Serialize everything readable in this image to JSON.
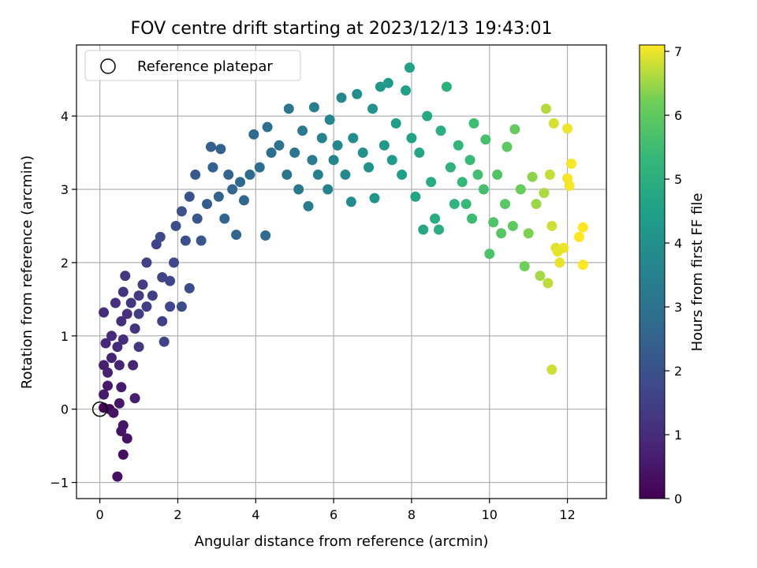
{
  "chart_data": {
    "type": "scatter",
    "title": "FOV centre drift starting at 2023/12/13 19:43:01",
    "xlabel": "Angular distance from reference (arcmin)",
    "ylabel": "Rotation from reference (arcmin)",
    "xlim": [
      -0.6,
      13.0
    ],
    "ylim": [
      -1.22,
      4.97
    ],
    "xticks": [
      0,
      2,
      4,
      6,
      8,
      10,
      12
    ],
    "yticks": [
      -1,
      0,
      1,
      2,
      3,
      4
    ],
    "grid": true,
    "legend": {
      "label": "Reference platepar",
      "position": "top-left"
    },
    "reference_point": {
      "x": 0,
      "y": 0
    },
    "colorbar": {
      "label": "Hours from first FF file",
      "range": [
        0,
        7.1
      ],
      "ticks": [
        0,
        1,
        2,
        3,
        4,
        5,
        6,
        7
      ],
      "colormap": "viridis"
    },
    "points": [
      {
        "x": 0.1,
        "y": 0.02,
        "h": 0.05
      },
      {
        "x": 0.25,
        "y": 0.0,
        "h": 0.1
      },
      {
        "x": 0.45,
        "y": -0.92,
        "h": 0.3
      },
      {
        "x": 0.6,
        "y": -0.62,
        "h": 0.35
      },
      {
        "x": 0.7,
        "y": -0.4,
        "h": 0.4
      },
      {
        "x": 0.55,
        "y": -0.3,
        "h": 0.45
      },
      {
        "x": 0.6,
        "y": -0.22,
        "h": 0.5
      },
      {
        "x": 0.5,
        "y": 0.08,
        "h": 0.5
      },
      {
        "x": 0.35,
        "y": -0.05,
        "h": 0.4
      },
      {
        "x": 0.55,
        "y": 0.3,
        "h": 0.6
      },
      {
        "x": 0.9,
        "y": 0.15,
        "h": 0.7
      },
      {
        "x": 0.2,
        "y": 0.32,
        "h": 0.55
      },
      {
        "x": 0.1,
        "y": 0.2,
        "h": 0.6
      },
      {
        "x": 0.1,
        "y": 0.6,
        "h": 0.7
      },
      {
        "x": 0.2,
        "y": 0.5,
        "h": 0.75
      },
      {
        "x": 0.3,
        "y": 0.7,
        "h": 0.8
      },
      {
        "x": 0.5,
        "y": 0.6,
        "h": 0.8
      },
      {
        "x": 0.85,
        "y": 0.6,
        "h": 0.85
      },
      {
        "x": 0.15,
        "y": 0.9,
        "h": 0.9
      },
      {
        "x": 0.3,
        "y": 1.0,
        "h": 0.9
      },
      {
        "x": 0.45,
        "y": 0.85,
        "h": 0.95
      },
      {
        "x": 0.6,
        "y": 0.95,
        "h": 1.0
      },
      {
        "x": 0.1,
        "y": 1.32,
        "h": 1.0
      },
      {
        "x": 0.4,
        "y": 1.45,
        "h": 1.05
      },
      {
        "x": 0.55,
        "y": 1.2,
        "h": 1.1
      },
      {
        "x": 0.7,
        "y": 1.3,
        "h": 1.15
      },
      {
        "x": 0.9,
        "y": 1.1,
        "h": 1.2
      },
      {
        "x": 0.6,
        "y": 1.6,
        "h": 1.2
      },
      {
        "x": 0.65,
        "y": 1.82,
        "h": 1.25
      },
      {
        "x": 1.0,
        "y": 0.85,
        "h": 1.3
      },
      {
        "x": 0.8,
        "y": 1.45,
        "h": 1.3
      },
      {
        "x": 1.0,
        "y": 1.55,
        "h": 1.35
      },
      {
        "x": 1.1,
        "y": 1.7,
        "h": 1.4
      },
      {
        "x": 1.2,
        "y": 1.4,
        "h": 1.45
      },
      {
        "x": 1.35,
        "y": 1.55,
        "h": 1.5
      },
      {
        "x": 1.2,
        "y": 2.0,
        "h": 1.55
      },
      {
        "x": 1.0,
        "y": 1.3,
        "h": 1.5
      },
      {
        "x": 1.6,
        "y": 1.2,
        "h": 1.55
      },
      {
        "x": 1.65,
        "y": 0.92,
        "h": 1.6
      },
      {
        "x": 1.45,
        "y": 2.25,
        "h": 1.6
      },
      {
        "x": 1.6,
        "y": 1.8,
        "h": 1.65
      },
      {
        "x": 1.8,
        "y": 1.75,
        "h": 1.7
      },
      {
        "x": 1.9,
        "y": 2.0,
        "h": 1.75
      },
      {
        "x": 1.55,
        "y": 2.35,
        "h": 1.75
      },
      {
        "x": 1.8,
        "y": 1.4,
        "h": 1.7
      },
      {
        "x": 2.1,
        "y": 1.4,
        "h": 1.8
      },
      {
        "x": 2.3,
        "y": 1.65,
        "h": 1.85
      },
      {
        "x": 1.95,
        "y": 2.5,
        "h": 1.9
      },
      {
        "x": 2.2,
        "y": 2.3,
        "h": 1.95
      },
      {
        "x": 2.3,
        "y": 2.9,
        "h": 2.0
      },
      {
        "x": 2.1,
        "y": 2.7,
        "h": 2.0
      },
      {
        "x": 2.5,
        "y": 2.6,
        "h": 2.1
      },
      {
        "x": 2.45,
        "y": 3.2,
        "h": 2.2
      },
      {
        "x": 2.6,
        "y": 2.3,
        "h": 2.2
      },
      {
        "x": 2.75,
        "y": 2.8,
        "h": 2.3
      },
      {
        "x": 2.85,
        "y": 3.58,
        "h": 2.4
      },
      {
        "x": 2.9,
        "y": 3.3,
        "h": 2.45
      },
      {
        "x": 3.05,
        "y": 2.9,
        "h": 2.5
      },
      {
        "x": 3.1,
        "y": 3.55,
        "h": 2.5
      },
      {
        "x": 3.3,
        "y": 3.2,
        "h": 2.55
      },
      {
        "x": 3.2,
        "y": 2.6,
        "h": 2.55
      },
      {
        "x": 3.4,
        "y": 3.0,
        "h": 2.6
      },
      {
        "x": 3.5,
        "y": 2.38,
        "h": 2.6
      },
      {
        "x": 3.6,
        "y": 3.1,
        "h": 2.65
      },
      {
        "x": 3.7,
        "y": 2.85,
        "h": 2.7
      },
      {
        "x": 3.85,
        "y": 3.2,
        "h": 2.75
      },
      {
        "x": 3.95,
        "y": 3.75,
        "h": 2.8
      },
      {
        "x": 4.1,
        "y": 3.3,
        "h": 2.85
      },
      {
        "x": 4.25,
        "y": 2.37,
        "h": 2.85
      },
      {
        "x": 4.3,
        "y": 3.85,
        "h": 2.9
      },
      {
        "x": 4.4,
        "y": 3.5,
        "h": 2.95
      },
      {
        "x": 4.6,
        "y": 3.6,
        "h": 3.0
      },
      {
        "x": 4.8,
        "y": 3.2,
        "h": 3.05
      },
      {
        "x": 4.85,
        "y": 4.1,
        "h": 3.1
      },
      {
        "x": 5.0,
        "y": 3.5,
        "h": 3.15
      },
      {
        "x": 5.1,
        "y": 3.0,
        "h": 3.2
      },
      {
        "x": 5.2,
        "y": 3.8,
        "h": 3.25
      },
      {
        "x": 5.35,
        "y": 2.77,
        "h": 3.3
      },
      {
        "x": 5.45,
        "y": 3.4,
        "h": 3.35
      },
      {
        "x": 5.5,
        "y": 4.12,
        "h": 3.4
      },
      {
        "x": 5.6,
        "y": 3.2,
        "h": 3.45
      },
      {
        "x": 5.7,
        "y": 3.7,
        "h": 3.5
      },
      {
        "x": 5.85,
        "y": 3.0,
        "h": 3.55
      },
      {
        "x": 5.9,
        "y": 3.95,
        "h": 3.6
      },
      {
        "x": 6.0,
        "y": 3.4,
        "h": 3.65
      },
      {
        "x": 6.1,
        "y": 3.6,
        "h": 3.7
      },
      {
        "x": 6.2,
        "y": 4.25,
        "h": 3.75
      },
      {
        "x": 6.3,
        "y": 3.2,
        "h": 3.8
      },
      {
        "x": 6.45,
        "y": 2.83,
        "h": 3.85
      },
      {
        "x": 6.5,
        "y": 3.7,
        "h": 3.9
      },
      {
        "x": 6.6,
        "y": 4.3,
        "h": 3.95
      },
      {
        "x": 6.75,
        "y": 3.5,
        "h": 4.0
      },
      {
        "x": 6.9,
        "y": 3.3,
        "h": 4.05
      },
      {
        "x": 7.0,
        "y": 4.1,
        "h": 4.1
      },
      {
        "x": 7.05,
        "y": 2.88,
        "h": 4.15
      },
      {
        "x": 7.2,
        "y": 4.4,
        "h": 4.2
      },
      {
        "x": 7.3,
        "y": 3.6,
        "h": 4.25
      },
      {
        "x": 7.4,
        "y": 4.45,
        "h": 4.3
      },
      {
        "x": 7.5,
        "y": 3.4,
        "h": 4.35
      },
      {
        "x": 7.6,
        "y": 3.9,
        "h": 4.4
      },
      {
        "x": 7.75,
        "y": 3.2,
        "h": 4.45
      },
      {
        "x": 7.85,
        "y": 4.35,
        "h": 4.5
      },
      {
        "x": 7.95,
        "y": 4.66,
        "h": 4.55
      },
      {
        "x": 8.0,
        "y": 3.7,
        "h": 4.6
      },
      {
        "x": 8.1,
        "y": 2.9,
        "h": 4.65
      },
      {
        "x": 8.2,
        "y": 3.5,
        "h": 4.7
      },
      {
        "x": 8.3,
        "y": 2.45,
        "h": 4.75
      },
      {
        "x": 8.4,
        "y": 4.0,
        "h": 4.8
      },
      {
        "x": 8.5,
        "y": 3.1,
        "h": 4.85
      },
      {
        "x": 8.6,
        "y": 2.6,
        "h": 4.9
      },
      {
        "x": 8.7,
        "y": 2.45,
        "h": 4.95
      },
      {
        "x": 8.75,
        "y": 3.8,
        "h": 5.0
      },
      {
        "x": 8.9,
        "y": 4.4,
        "h": 5.1
      },
      {
        "x": 9.0,
        "y": 3.3,
        "h": 5.15
      },
      {
        "x": 9.1,
        "y": 2.8,
        "h": 5.2
      },
      {
        "x": 9.2,
        "y": 3.6,
        "h": 5.25
      },
      {
        "x": 9.3,
        "y": 3.1,
        "h": 5.3
      },
      {
        "x": 9.4,
        "y": 2.8,
        "h": 5.35
      },
      {
        "x": 9.5,
        "y": 3.4,
        "h": 5.4
      },
      {
        "x": 9.55,
        "y": 2.6,
        "h": 5.45
      },
      {
        "x": 9.6,
        "y": 3.9,
        "h": 5.5
      },
      {
        "x": 9.7,
        "y": 3.2,
        "h": 5.55
      },
      {
        "x": 9.85,
        "y": 3.0,
        "h": 5.6
      },
      {
        "x": 9.9,
        "y": 3.68,
        "h": 5.65
      },
      {
        "x": 10.0,
        "y": 2.12,
        "h": 5.7
      },
      {
        "x": 10.1,
        "y": 2.55,
        "h": 5.75
      },
      {
        "x": 10.2,
        "y": 3.2,
        "h": 5.8
      },
      {
        "x": 10.3,
        "y": 2.4,
        "h": 5.85
      },
      {
        "x": 10.4,
        "y": 2.8,
        "h": 5.9
      },
      {
        "x": 10.45,
        "y": 3.58,
        "h": 5.95
      },
      {
        "x": 10.6,
        "y": 2.5,
        "h": 6.0
      },
      {
        "x": 10.65,
        "y": 3.82,
        "h": 6.05
      },
      {
        "x": 10.8,
        "y": 3.0,
        "h": 6.1
      },
      {
        "x": 10.9,
        "y": 1.95,
        "h": 6.2
      },
      {
        "x": 11.0,
        "y": 2.4,
        "h": 6.3
      },
      {
        "x": 11.1,
        "y": 3.17,
        "h": 6.4
      },
      {
        "x": 11.2,
        "y": 2.8,
        "h": 6.5
      },
      {
        "x": 11.3,
        "y": 1.82,
        "h": 6.55
      },
      {
        "x": 11.4,
        "y": 2.95,
        "h": 6.6
      },
      {
        "x": 11.45,
        "y": 4.1,
        "h": 6.65
      },
      {
        "x": 11.5,
        "y": 1.72,
        "h": 6.7
      },
      {
        "x": 11.55,
        "y": 3.2,
        "h": 6.75
      },
      {
        "x": 11.6,
        "y": 2.5,
        "h": 6.8
      },
      {
        "x": 11.6,
        "y": 0.54,
        "h": 6.8
      },
      {
        "x": 11.65,
        "y": 3.9,
        "h": 6.85
      },
      {
        "x": 11.7,
        "y": 2.2,
        "h": 6.9
      },
      {
        "x": 11.8,
        "y": 2.0,
        "h": 6.95
      },
      {
        "x": 11.9,
        "y": 2.2,
        "h": 7.0
      },
      {
        "x": 12.0,
        "y": 3.83,
        "h": 7.0
      },
      {
        "x": 12.05,
        "y": 3.05,
        "h": 7.05
      },
      {
        "x": 12.1,
        "y": 3.35,
        "h": 7.05
      },
      {
        "x": 12.3,
        "y": 2.35,
        "h": 7.1
      },
      {
        "x": 12.4,
        "y": 2.48,
        "h": 7.1
      },
      {
        "x": 12.4,
        "y": 1.97,
        "h": 7.1
      },
      {
        "x": 12.0,
        "y": 3.15,
        "h": 7.05
      },
      {
        "x": 11.75,
        "y": 2.15,
        "h": 6.95
      }
    ]
  }
}
